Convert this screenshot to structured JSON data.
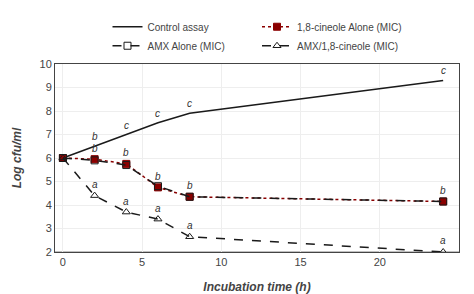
{
  "chart_data": {
    "type": "line",
    "xlabel": "Incubation time (h)",
    "ylabel": "Log cfu/ml",
    "xlim": [
      -0.5,
      25
    ],
    "xticks": [
      0,
      5,
      10,
      15,
      20
    ],
    "ylim": [
      2,
      10
    ],
    "yticks": [
      2,
      3,
      4,
      5,
      6,
      7,
      8,
      9,
      10
    ],
    "legend": "top",
    "series": [
      {
        "name": "Control assay",
        "color": "#1a1a1a",
        "line_style": "solid",
        "marker": "none",
        "x": [
          0,
          2,
          4,
          6,
          8,
          24
        ],
        "values": [
          6.0,
          6.5,
          7.0,
          7.5,
          7.9,
          9.3
        ]
      },
      {
        "name": "1,8-cineole Alone (MIC)",
        "color": "#8b0000",
        "line_style": "dotted",
        "marker": "square",
        "x": [
          0,
          2,
          4,
          6,
          8,
          24
        ],
        "values": [
          6.0,
          5.95,
          5.75,
          4.75,
          4.35,
          4.15
        ]
      },
      {
        "name": "AMX Alone (MIC)",
        "color": "#1a1a1a",
        "line_style": "dashed",
        "marker": "square-open",
        "x": [
          0,
          2,
          4,
          6,
          8,
          24
        ],
        "values": [
          6.0,
          5.9,
          5.7,
          4.8,
          4.35,
          4.15
        ]
      },
      {
        "name": "AMX/1,8-cineole (MIC)",
        "color": "#1a1a1a",
        "line_style": "dashed",
        "marker": "triangle-up-open",
        "x": [
          0,
          2,
          4,
          6,
          8,
          24
        ],
        "values": [
          6.0,
          4.4,
          3.7,
          3.4,
          2.65,
          2.0
        ]
      }
    ],
    "reference_lines": [
      {
        "y": 2,
        "color": "gray"
      }
    ],
    "annotations": [
      {
        "x": 2,
        "y": 6.6,
        "text": "b"
      },
      {
        "x": 4,
        "y": 7.08,
        "text": "c"
      },
      {
        "x": 6,
        "y": 7.58,
        "text": "c"
      },
      {
        "x": 8,
        "y": 8.0,
        "text": "c"
      },
      {
        "x": 24,
        "y": 9.4,
        "text": "c"
      },
      {
        "x": 6,
        "y": 4.9,
        "text": "b"
      },
      {
        "x": 8,
        "y": 4.5,
        "text": "b"
      },
      {
        "x": 24,
        "y": 4.3,
        "text": "b"
      },
      {
        "x": 2,
        "y": 6.1,
        "text": "b"
      },
      {
        "x": 4,
        "y": 5.9,
        "text": "b"
      },
      {
        "x": 2,
        "y": 4.55,
        "text": "a"
      },
      {
        "x": 4,
        "y": 3.85,
        "text": "a"
      },
      {
        "x": 6,
        "y": 3.55,
        "text": "a"
      },
      {
        "x": 8,
        "y": 2.8,
        "text": "a"
      },
      {
        "x": 24,
        "y": 2.15,
        "text": "a"
      }
    ]
  }
}
